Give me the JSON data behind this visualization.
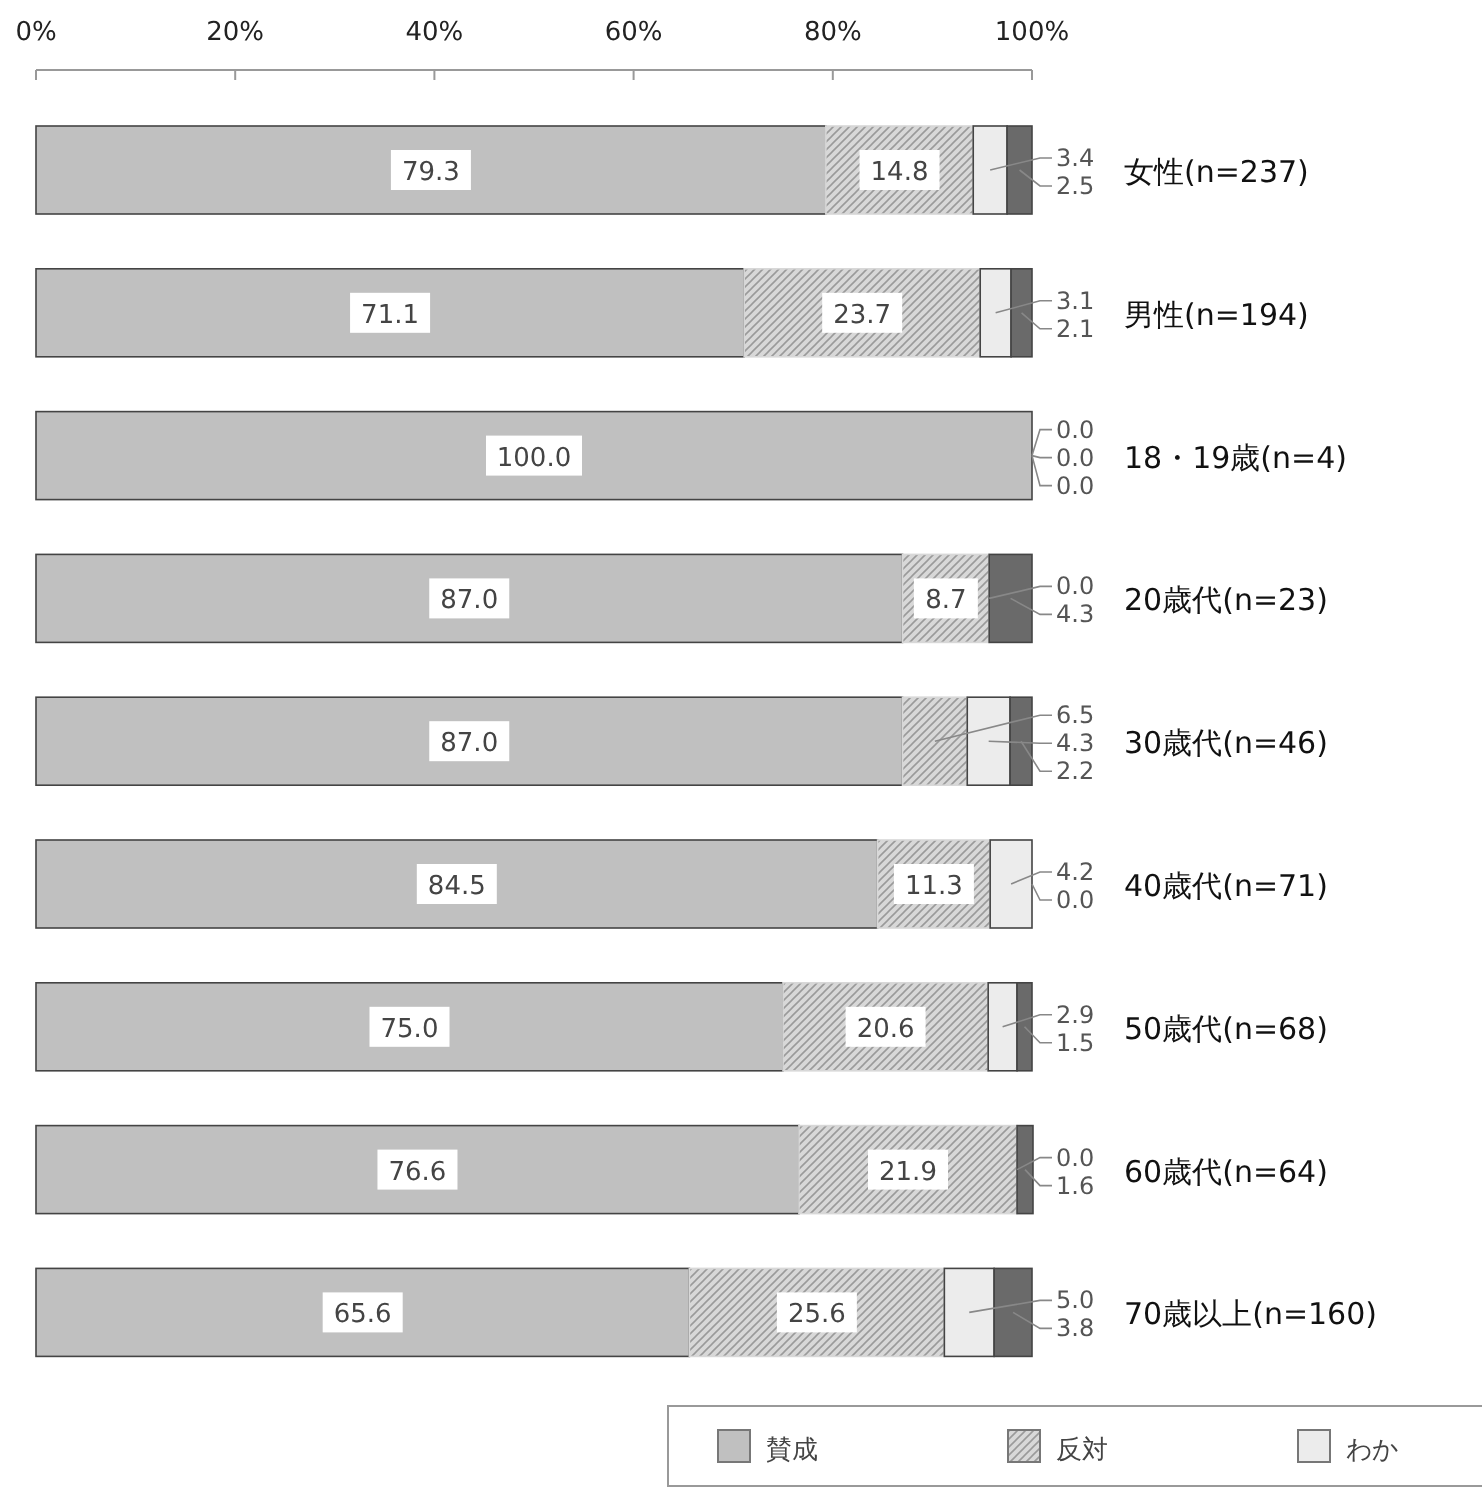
{
  "chart_data": {
    "type": "bar",
    "orientation": "horizontal",
    "stacked": true,
    "legend": "bottom right",
    "grid": false,
    "categories": [
      "女性(n=237)",
      "男性(n=194)",
      "18・19歳(n=4)",
      "20歳代(n=23)",
      "30歳代(n=46)",
      "40歳代(n=71)",
      "50歳代(n=68)",
      "60歳代(n=64)",
      "70歳以上(n=160)"
    ],
    "xlim": [
      0,
      100
    ],
    "xticks": [
      {
        "value": 0,
        "label": "0%"
      },
      {
        "value": 20,
        "label": "20%"
      },
      {
        "value": 40,
        "label": "40%"
      },
      {
        "value": 60,
        "label": "60%"
      },
      {
        "value": 80,
        "label": "80%"
      },
      {
        "value": 100,
        "label": "100%"
      }
    ],
    "series": [
      {
        "name": "賛成",
        "color": "#c0c0c0",
        "values": [
          79.3,
          71.1,
          100.0,
          87.0,
          87.0,
          84.5,
          75.0,
          76.6,
          65.6
        ],
        "value_labels": [
          "79.3",
          "71.1",
          "100.0",
          "87.0",
          "87.0",
          "84.5",
          "75.0",
          "76.6",
          "65.6"
        ]
      },
      {
        "name": "反対",
        "color": "#d8d8d8",
        "values": [
          14.8,
          23.7,
          0.0,
          8.7,
          6.5,
          11.3,
          20.6,
          21.9,
          25.6
        ],
        "value_labels": [
          "14.8",
          "23.7",
          "0.0",
          "8.7",
          "6.5",
          "11.3",
          "20.6",
          "21.9",
          "25.6"
        ]
      },
      {
        "name": "わか",
        "color": "#ececec",
        "values": [
          3.4,
          3.1,
          0.0,
          0.0,
          4.3,
          4.2,
          2.9,
          0.0,
          5.0
        ],
        "value_labels": [
          "3.4",
          "3.1",
          "0.0",
          "0.0",
          "4.3",
          "4.2",
          "2.9",
          "0.0",
          "5.0"
        ]
      },
      {
        "color": "#6a6a6a",
        "values": [
          2.5,
          2.1,
          0.0,
          4.3,
          2.2,
          0.0,
          1.5,
          1.6,
          3.8
        ],
        "value_labels": [
          "2.5",
          "2.1",
          "0.0",
          "4.3",
          "2.2",
          "0.0",
          "1.5",
          "1.6",
          "3.8"
        ]
      }
    ]
  }
}
